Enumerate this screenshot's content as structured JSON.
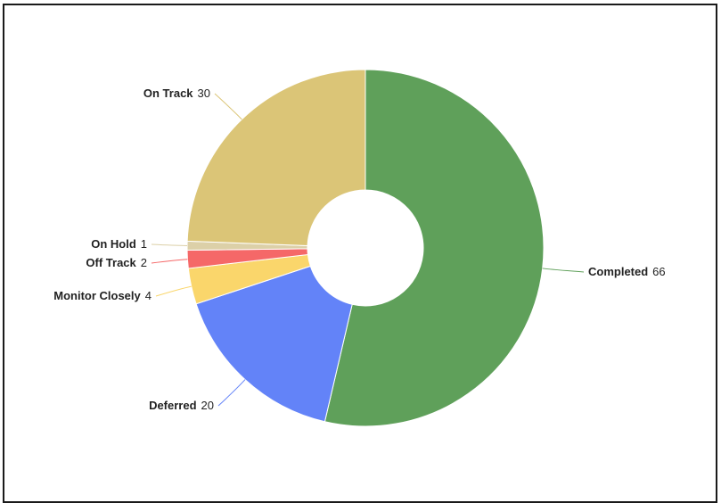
{
  "chart_data": {
    "type": "pie",
    "variant": "donut",
    "title": "",
    "slices": [
      {
        "name": "Completed",
        "value": 66,
        "color": "#5fa05a"
      },
      {
        "name": "Deferred",
        "value": 20,
        "color": "#6383f8"
      },
      {
        "name": "Monitor Closely",
        "value": 4,
        "color": "#fad66b"
      },
      {
        "name": "Off Track",
        "value": 2,
        "color": "#f56868"
      },
      {
        "name": "On Hold",
        "value": 1,
        "color": "#dcd0a8"
      },
      {
        "name": "On Track",
        "value": 30,
        "color": "#dbc577"
      }
    ],
    "total": 123,
    "start": "12 o'clock",
    "direction": "clockwise"
  }
}
